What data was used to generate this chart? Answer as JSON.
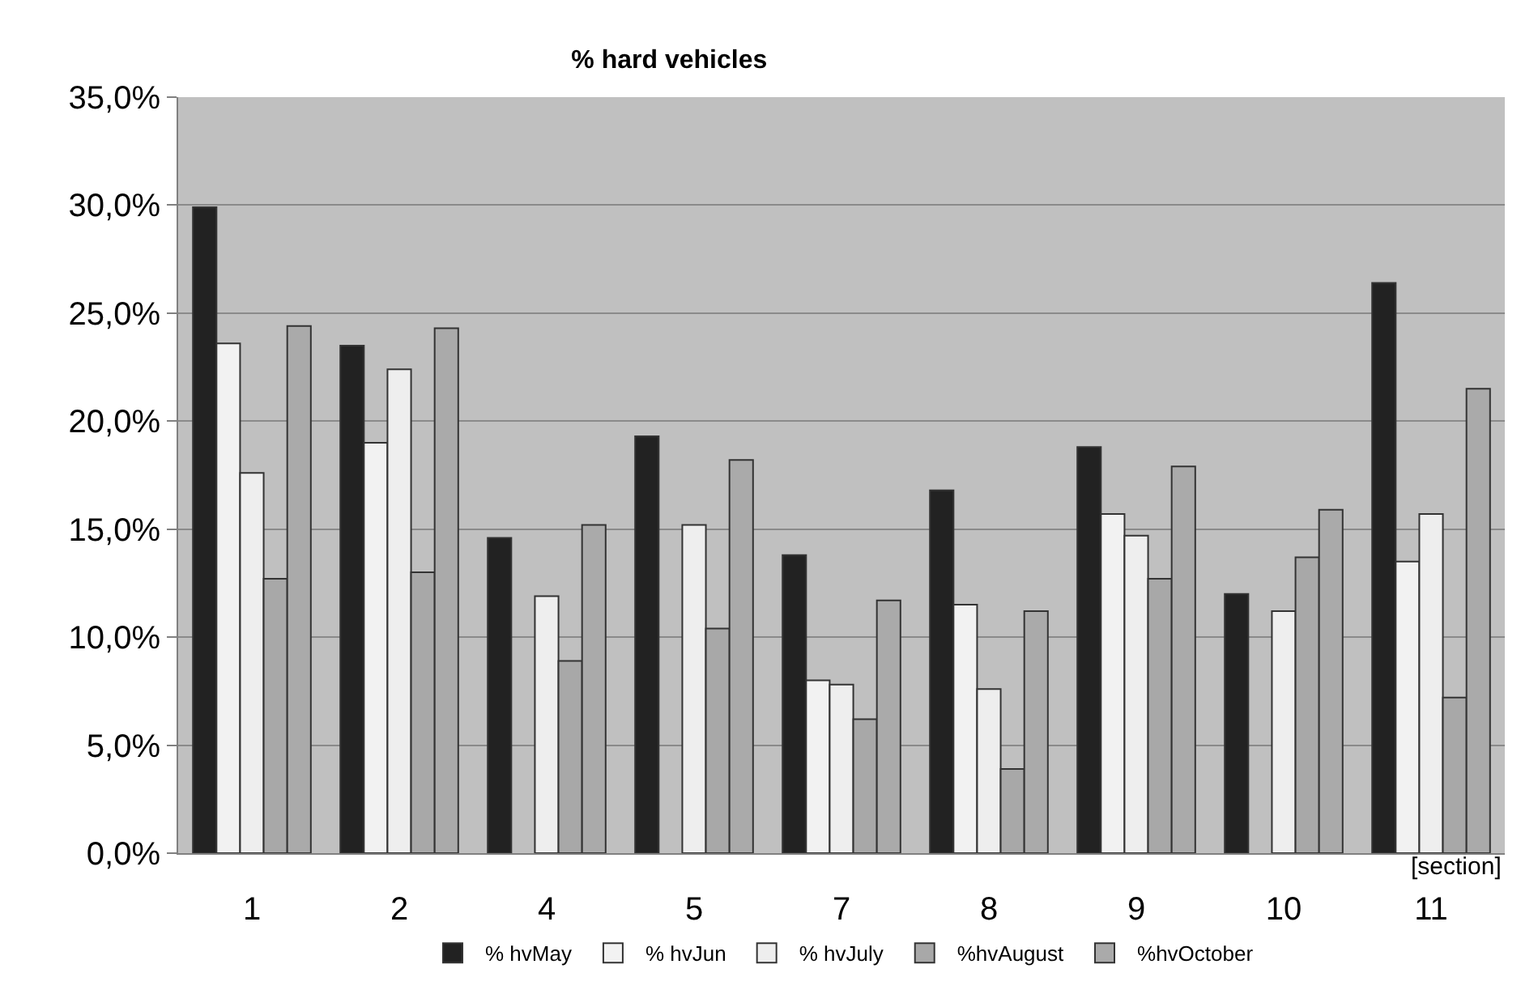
{
  "chart_data": {
    "type": "bar",
    "title": "% hard vehicles",
    "xlabel": "[section]",
    "categories": [
      "1",
      "2",
      "4",
      "5",
      "7",
      "8",
      "9",
      "10",
      "11"
    ],
    "series": [
      {
        "name": "% hvMay",
        "color": "#222222",
        "values": [
          29.9,
          23.5,
          14.6,
          19.3,
          13.8,
          16.8,
          18.8,
          12.0,
          26.4
        ]
      },
      {
        "name": "% hvJun",
        "color": "#f2f2f2",
        "values": [
          23.6,
          19.0,
          null,
          null,
          8.0,
          11.5,
          15.7,
          null,
          13.5
        ]
      },
      {
        "name": "% hvJuly",
        "color": "#eeeeee",
        "values": [
          17.6,
          22.4,
          11.9,
          15.2,
          7.8,
          7.6,
          14.7,
          11.2,
          15.7
        ]
      },
      {
        "name": "%hvAugust",
        "color": "#a8a8a8",
        "values": [
          12.7,
          13.0,
          8.9,
          10.4,
          6.2,
          3.9,
          12.7,
          13.7,
          7.2
        ]
      },
      {
        "name": "%hvOctober",
        "color": "#aaaaaa",
        "values": [
          24.4,
          24.3,
          15.2,
          18.2,
          11.7,
          11.2,
          17.9,
          15.9,
          21.5
        ]
      }
    ],
    "ylim": [
      0,
      35
    ],
    "yticks": [
      {
        "value": 0,
        "label": "0,0%"
      },
      {
        "value": 5,
        "label": "5,0%"
      },
      {
        "value": 10,
        "label": "10,0%"
      },
      {
        "value": 15,
        "label": "15,0%"
      },
      {
        "value": 20,
        "label": "20,0%"
      },
      {
        "value": 25,
        "label": "25,0%"
      },
      {
        "value": 30,
        "label": "30,0%"
      },
      {
        "value": 35,
        "label": "35,0%"
      }
    ],
    "grid": "y",
    "legend": "bottom"
  }
}
